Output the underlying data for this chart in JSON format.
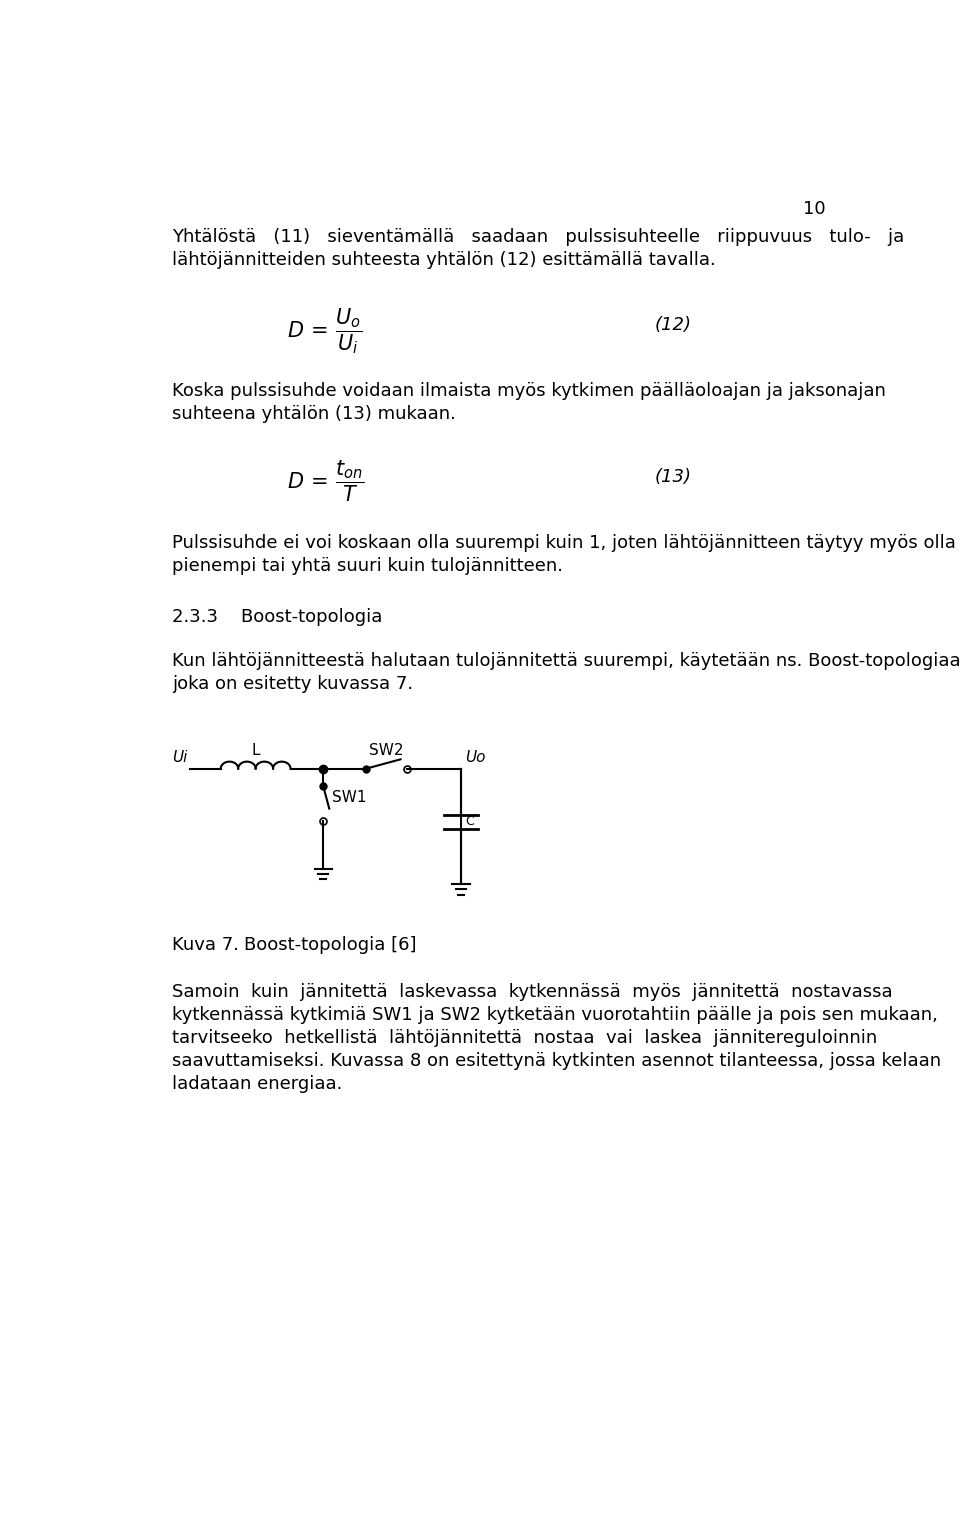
{
  "page_number": "10",
  "bg_color": "#ffffff",
  "text_color": "#000000",
  "paragraph1": "Yhtälöstä   (11)   sieventämällä   saadaan   pulssisuhteelle   riippuvuus   tulo-   ja",
  "paragraph1b": "lähtöjännitteiden suhteesta yhtälön (12) esittämällä tavalla.",
  "eq12_label": "(12)",
  "paragraph2": "Koska pulssisuhde voidaan ilmaista myös kytkimen päälläoloajan ja jaksonajan",
  "paragraph2b": "suhteena yhtälön (13) mukaan.",
  "eq13_label": "(13)",
  "paragraph3": "Pulssisuhde ei voi koskaan olla suurempi kuin 1, joten lähtöjännitteen täytyy myös olla",
  "paragraph3b": "pienempi tai yhtä suuri kuin tulojännitteen.",
  "section_title": "2.3.3    Boost-topologia",
  "paragraph4": "Kun lähtöjännitteestä halutaan tulojännitettä suurempi, käytetään ns. Boost-topologiaa,",
  "paragraph4b": "joka on esitetty kuvassa 7.",
  "figure_caption_a": "Kuva 7.",
  "figure_caption_b": "Boost-topologia [6]",
  "paragraph5a": "Samoin  kuin  jännitettä  laskevassa  kytkennässä  myös  jännitettä  nostavassa",
  "paragraph5b": "kytkennässä kytkimiä SW1 ja SW2 kytketään vuorotahtiin päälle ja pois sen mukaan,",
  "paragraph5c": "tarvitseeko  hetkellistä  lähtöjännitettä  nostaa  vai  laskea  jännitereguloinnin",
  "paragraph5d": "saavuttamiseksi. Kuvassa 8 on esitettynä kytkinten asennot tilanteessa, jossa kelaan",
  "paragraph5e": "ladataan energiaa."
}
